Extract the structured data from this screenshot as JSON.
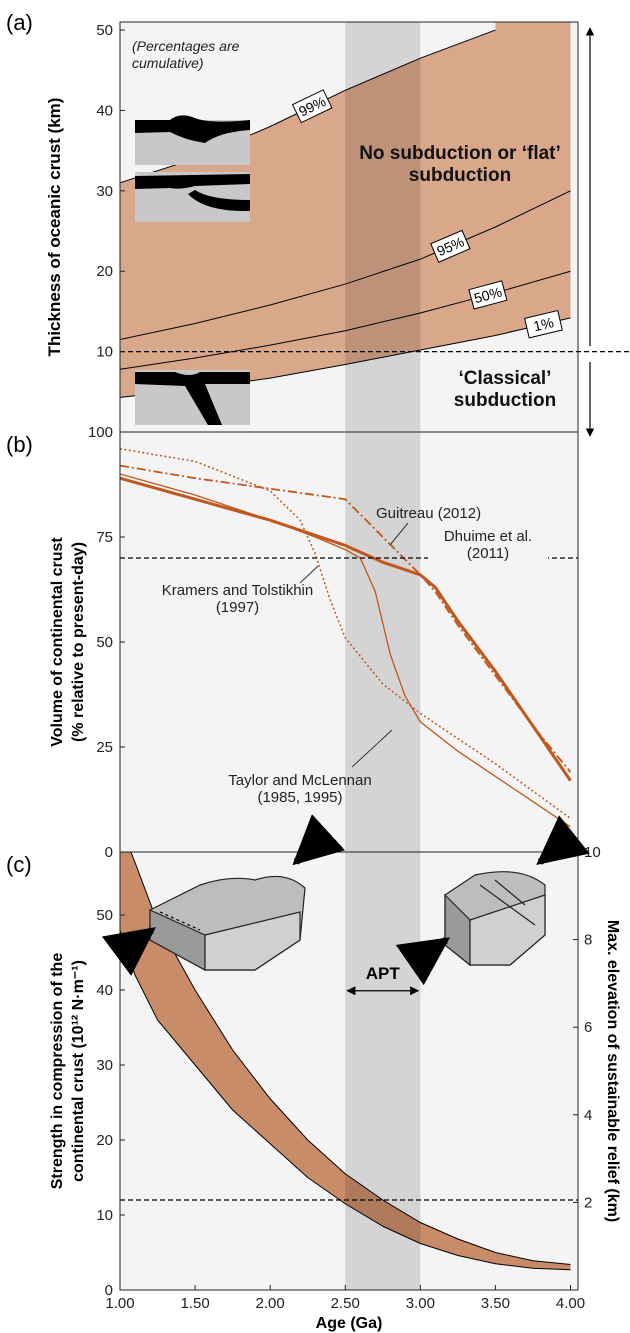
{
  "chart_data": [
    {
      "type": "line",
      "label": "(a)",
      "ylabel": "Thickness of oceanic crust (km)",
      "xlim": [
        1,
        4.05
      ],
      "ylim": [
        0,
        51
      ],
      "yticks": [
        10,
        20,
        30,
        40,
        50
      ],
      "highlight": [
        2.5,
        3.0
      ],
      "hline": 10,
      "fill": {
        "color": "#d9a88b"
      },
      "annotations": [
        "(Percentages are cumulative)",
        "No subduction or ‘flat’ subduction",
        "‘Classical’ subduction"
      ],
      "series": [
        {
          "name": "1%",
          "color": "#000000",
          "x": [
            1,
            1.5,
            2,
            2.5,
            3,
            3.5,
            4
          ],
          "values": [
            4.3,
            5.4,
            6.7,
            8.4,
            10.2,
            12,
            14.2
          ]
        },
        {
          "name": "50%",
          "color": "#000000",
          "x": [
            1,
            1.5,
            2,
            2.5,
            3,
            3.5,
            4
          ],
          "values": [
            7.8,
            9.2,
            10.8,
            12.6,
            14.8,
            17.3,
            20
          ]
        },
        {
          "name": "95%",
          "color": "#000000",
          "x": [
            1,
            1.5,
            2,
            2.5,
            3,
            3.5,
            4
          ],
          "values": [
            11.5,
            13.5,
            15.8,
            18.4,
            21.5,
            25.5,
            30
          ]
        },
        {
          "name": "99%",
          "color": "#000000",
          "x": [
            1,
            1.5,
            2,
            2.5,
            3,
            3.5
          ],
          "values": [
            31,
            34,
            38,
            42.5,
            46.5,
            50
          ]
        }
      ]
    },
    {
      "type": "line",
      "label": "(b)",
      "ylabel": [
        "Volume of continental crust",
        "(% relative to present-day)"
      ],
      "xlim": [
        1,
        4.05
      ],
      "ylim": [
        0,
        100
      ],
      "yticks": [
        0,
        25,
        50,
        75,
        100
      ],
      "highlight": [
        2.5,
        3.0
      ],
      "hline": 70,
      "series": [
        {
          "name": "Dhuime et al. (2011)",
          "color": "#c0571e",
          "style": "solid",
          "width": 3,
          "x": [
            1,
            1.5,
            2,
            2.5,
            2.75,
            3,
            3.1,
            3.25,
            3.5,
            3.75,
            4
          ],
          "values": [
            89,
            84,
            79,
            73,
            69,
            66,
            63,
            55,
            43,
            30,
            17
          ]
        },
        {
          "name": "Guitreau (2012)",
          "color": "#c0571e",
          "style": "dashdot",
          "width": 1.8,
          "x": [
            1,
            1.5,
            2,
            2.5,
            2.75,
            3,
            3.1,
            3.25,
            3.5,
            3.75,
            4
          ],
          "values": [
            92,
            89,
            86.5,
            84,
            75,
            66,
            62,
            54,
            42,
            30,
            19
          ]
        },
        {
          "name": "Taylor and McLennan (1985, 1995)",
          "color": "#c0571e",
          "style": "solid",
          "width": 1.3,
          "x": [
            1,
            1.5,
            2,
            2.3,
            2.5,
            2.6,
            2.7,
            2.8,
            2.9,
            3,
            3.25,
            3.5,
            3.75,
            4
          ],
          "values": [
            90,
            85,
            79,
            75,
            72,
            70,
            62,
            47,
            37,
            31,
            24,
            18,
            12,
            6
          ]
        },
        {
          "name": "Kramers and Tolstikhin (1997)",
          "color": "#c0571e",
          "style": "dotted",
          "width": 1.5,
          "x": [
            1,
            1.5,
            2,
            2.2,
            2.3,
            2.4,
            2.5,
            2.75,
            3,
            3.5,
            4
          ],
          "values": [
            96,
            93,
            86,
            79,
            71,
            60,
            51,
            40,
            33,
            21,
            8
          ]
        }
      ]
    },
    {
      "type": "area",
      "label": "(c)",
      "ylabel": [
        "Strength in compression of the",
        "continental crust (10¹² N·m⁻¹)"
      ],
      "y2label": "Max. elevation of sustainable relief (km)",
      "xlabel": "Age (Ga)",
      "xlim": [
        1,
        4.05
      ],
      "ylim": [
        0,
        58.4
      ],
      "yticks": [
        0,
        10,
        20,
        30,
        40,
        50
      ],
      "y2lim": [
        0,
        10
      ],
      "y2ticks": [
        2,
        4,
        6,
        8,
        10
      ],
      "xticks": [
        {
          "value": 1,
          "label": "1.00"
        },
        {
          "value": 1.5,
          "label": "1.50"
        },
        {
          "value": 2,
          "label": "2.00"
        },
        {
          "value": 2.5,
          "label": "2.50"
        },
        {
          "value": 3,
          "label": "3.00"
        },
        {
          "value": 3.5,
          "label": "3.50"
        },
        {
          "value": 4,
          "label": "4.00"
        }
      ],
      "highlight": [
        2.5,
        3.0
      ],
      "highlight_label": "APT",
      "hline": 12,
      "color": "#c98c69",
      "x": [
        1,
        1.1,
        1.25,
        1.5,
        1.75,
        2,
        2.25,
        2.5,
        2.75,
        3,
        3.25,
        3.5,
        3.75,
        4
      ],
      "upper": [
        62,
        57,
        49,
        40,
        32,
        25.5,
        20,
        15.5,
        12,
        9,
        6.8,
        5,
        3.9,
        3.4
      ],
      "lower": [
        48,
        42,
        36,
        30,
        24,
        19.5,
        15,
        11.5,
        8.5,
        6.2,
        4.6,
        3.5,
        2.9,
        2.7
      ]
    }
  ]
}
